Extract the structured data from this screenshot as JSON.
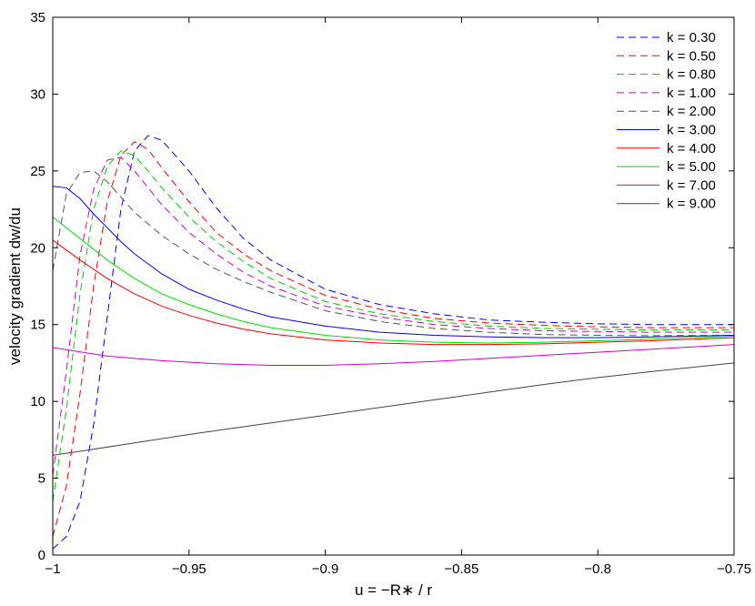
{
  "chart_data": {
    "type": "line",
    "title": "",
    "xlabel": "u = −R∗ / r",
    "ylabel": "velocity gradient dw/du",
    "xlim": [
      -1,
      -0.75
    ],
    "ylim": [
      0,
      35
    ],
    "x_ticks": [
      -1,
      -0.95,
      -0.9,
      -0.85,
      -0.8,
      -0.75
    ],
    "x_tick_labels": [
      "−1",
      "−0.95",
      "−0.9",
      "−0.85",
      "−0.8",
      "−0.75"
    ],
    "y_ticks": [
      0,
      5,
      10,
      15,
      20,
      25,
      30,
      35
    ],
    "y_tick_labels": [
      "0",
      "5",
      "10",
      "15",
      "20",
      "25",
      "30",
      "35"
    ],
    "grid": false,
    "legend_position": "top-right",
    "series": [
      {
        "name": "k = 0.30",
        "color": "#0000ff",
        "dashed": true,
        "x": [
          -1,
          -0.995,
          -0.99,
          -0.985,
          -0.98,
          -0.975,
          -0.97,
          -0.965,
          -0.96,
          -0.95,
          -0.94,
          -0.93,
          -0.92,
          -0.9,
          -0.88,
          -0.86,
          -0.84,
          -0.82,
          -0.8,
          -0.78,
          -0.75
        ],
        "y": [
          0.4,
          1.2,
          3.5,
          8.5,
          15.5,
          22.5,
          26.3,
          27.3,
          27.0,
          25.0,
          22.6,
          20.6,
          19.2,
          17.3,
          16.3,
          15.7,
          15.3,
          15.15,
          15.05,
          15.0,
          15.0
        ]
      },
      {
        "name": "k = 0.50",
        "color": "#ff0000",
        "dashed": true,
        "x": [
          -1,
          -0.995,
          -0.99,
          -0.985,
          -0.98,
          -0.975,
          -0.97,
          -0.965,
          -0.96,
          -0.95,
          -0.94,
          -0.93,
          -0.92,
          -0.9,
          -0.88,
          -0.86,
          -0.84,
          -0.82,
          -0.8,
          -0.78,
          -0.75
        ],
        "y": [
          1.2,
          4.5,
          10.5,
          17.5,
          23.0,
          26.0,
          26.9,
          26.4,
          25.2,
          23.0,
          21.0,
          19.6,
          18.5,
          16.9,
          16.0,
          15.4,
          15.1,
          14.95,
          14.85,
          14.8,
          14.8
        ]
      },
      {
        "name": "k = 0.80",
        "color": "#00cc00",
        "dashed": true,
        "x": [
          -1,
          -0.995,
          -0.99,
          -0.985,
          -0.98,
          -0.975,
          -0.97,
          -0.965,
          -0.96,
          -0.95,
          -0.94,
          -0.93,
          -0.92,
          -0.9,
          -0.88,
          -0.86,
          -0.84,
          -0.82,
          -0.8,
          -0.78,
          -0.75
        ],
        "y": [
          3.5,
          9.5,
          17.0,
          22.5,
          25.3,
          26.3,
          26.0,
          25.0,
          23.9,
          22.0,
          20.4,
          19.1,
          18.0,
          16.5,
          15.7,
          15.2,
          14.9,
          14.75,
          14.7,
          14.65,
          14.65
        ]
      },
      {
        "name": "k = 1.00",
        "color": "#cc00cc",
        "dashed": true,
        "x": [
          -1,
          -0.995,
          -0.99,
          -0.985,
          -0.98,
          -0.975,
          -0.97,
          -0.965,
          -0.96,
          -0.95,
          -0.94,
          -0.93,
          -0.92,
          -0.9,
          -0.88,
          -0.86,
          -0.84,
          -0.82,
          -0.8,
          -0.78,
          -0.75
        ],
        "y": [
          5.2,
          12.0,
          19.5,
          23.8,
          25.7,
          25.9,
          25.0,
          23.9,
          22.8,
          21.0,
          19.6,
          18.4,
          17.5,
          16.2,
          15.5,
          15.0,
          14.75,
          14.6,
          14.55,
          14.5,
          14.5
        ]
      },
      {
        "name": "k = 2.00",
        "color": "#555555",
        "dashed": true,
        "x": [
          -1,
          -0.995,
          -0.99,
          -0.985,
          -0.98,
          -0.975,
          -0.97,
          -0.96,
          -0.95,
          -0.94,
          -0.93,
          -0.92,
          -0.9,
          -0.88,
          -0.86,
          -0.84,
          -0.82,
          -0.8,
          -0.78,
          -0.75
        ],
        "y": [
          18.5,
          23.5,
          24.9,
          25.0,
          24.3,
          23.3,
          22.3,
          20.8,
          19.6,
          18.6,
          17.8,
          17.1,
          15.9,
          15.2,
          14.75,
          14.5,
          14.35,
          14.3,
          14.28,
          14.3
        ]
      },
      {
        "name": "k = 3.00",
        "color": "#0000ff",
        "dashed": false,
        "x": [
          -1,
          -0.995,
          -0.99,
          -0.985,
          -0.98,
          -0.975,
          -0.97,
          -0.96,
          -0.95,
          -0.94,
          -0.93,
          -0.92,
          -0.9,
          -0.88,
          -0.86,
          -0.84,
          -0.82,
          -0.8,
          -0.78,
          -0.75
        ],
        "y": [
          24.0,
          23.9,
          23.2,
          22.2,
          21.3,
          20.4,
          19.6,
          18.3,
          17.3,
          16.6,
          16.0,
          15.5,
          14.9,
          14.5,
          14.3,
          14.2,
          14.15,
          14.15,
          14.2,
          14.3
        ]
      },
      {
        "name": "k = 4.00",
        "color": "#ff0000",
        "dashed": false,
        "x": [
          -1,
          -0.99,
          -0.98,
          -0.97,
          -0.96,
          -0.95,
          -0.94,
          -0.93,
          -0.92,
          -0.9,
          -0.88,
          -0.86,
          -0.84,
          -0.82,
          -0.8,
          -0.78,
          -0.75
        ],
        "y": [
          20.5,
          19.2,
          18.0,
          17.0,
          16.2,
          15.6,
          15.1,
          14.7,
          14.4,
          14.0,
          13.8,
          13.7,
          13.7,
          13.75,
          13.85,
          13.95,
          14.15
        ]
      },
      {
        "name": "k = 5.00",
        "color": "#00dd00",
        "dashed": false,
        "x": [
          -1,
          -0.99,
          -0.98,
          -0.97,
          -0.96,
          -0.95,
          -0.94,
          -0.93,
          -0.92,
          -0.9,
          -0.88,
          -0.86,
          -0.84,
          -0.82,
          -0.8,
          -0.78,
          -0.75
        ],
        "y": [
          22.0,
          20.6,
          19.2,
          18.0,
          17.0,
          16.3,
          15.7,
          15.2,
          14.8,
          14.3,
          14.0,
          13.85,
          13.8,
          13.85,
          13.95,
          14.05,
          14.25
        ]
      },
      {
        "name": "k = 7.00",
        "color": "#cc00cc",
        "dashed": false,
        "x": [
          -1,
          -0.98,
          -0.96,
          -0.94,
          -0.92,
          -0.9,
          -0.88,
          -0.86,
          -0.84,
          -0.82,
          -0.8,
          -0.78,
          -0.75
        ],
        "y": [
          13.5,
          12.95,
          12.65,
          12.45,
          12.35,
          12.35,
          12.45,
          12.6,
          12.8,
          13.0,
          13.2,
          13.4,
          13.7
        ]
      },
      {
        "name": "k = 9.00",
        "color": "#444444",
        "dashed": false,
        "x": [
          -1,
          -0.99,
          -0.97,
          -0.95,
          -0.93,
          -0.9,
          -0.87,
          -0.85,
          -0.82,
          -0.8,
          -0.78,
          -0.75
        ],
        "y": [
          6.5,
          6.75,
          7.3,
          7.85,
          8.35,
          9.1,
          9.85,
          10.35,
          11.1,
          11.55,
          11.95,
          12.5
        ]
      }
    ]
  }
}
